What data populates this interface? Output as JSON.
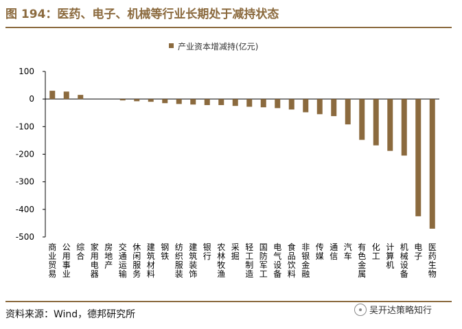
{
  "figure_title": "图 194：医药、电子、机械等行业长期处于减持状态",
  "source_text": "资料来源：Wind，德邦研究所",
  "watermark_text": "吴开达策略知行",
  "watermark_icon": "wechat-icon",
  "colors": {
    "bar": "#8B6A3E",
    "accent": "#8B6A3E",
    "axis": "#000000"
  },
  "chart_data": {
    "type": "bar",
    "legend": "产业资本增减持(亿元)",
    "legend_position": "top-center",
    "categories": [
      "商业贸易",
      "公用事业",
      "综合",
      "家用电器",
      "房地产",
      "交通运输",
      "休闲服务",
      "建筑材料",
      "钢铁",
      "纺织服装",
      "建筑装饰",
      "银行",
      "农林牧渔",
      "采掘",
      "轻工制造",
      "国防军工",
      "电气设备",
      "食品饮料",
      "非银金融",
      "传媒",
      "通信",
      "汽车",
      "有色金属",
      "化工",
      "计算机",
      "机械设备",
      "电子",
      "医药生物"
    ],
    "values": [
      30,
      27,
      15,
      0,
      0,
      -5,
      -8,
      -10,
      -15,
      -18,
      -20,
      -22,
      -22,
      -25,
      -28,
      -30,
      -33,
      -38,
      -48,
      -55,
      -62,
      -92,
      -148,
      -168,
      -188,
      -205,
      -425,
      -470
    ],
    "ylim": [
      -500,
      100
    ],
    "yticks": [
      100,
      0,
      -100,
      -200,
      -300,
      -400,
      -500
    ],
    "grid": false
  }
}
